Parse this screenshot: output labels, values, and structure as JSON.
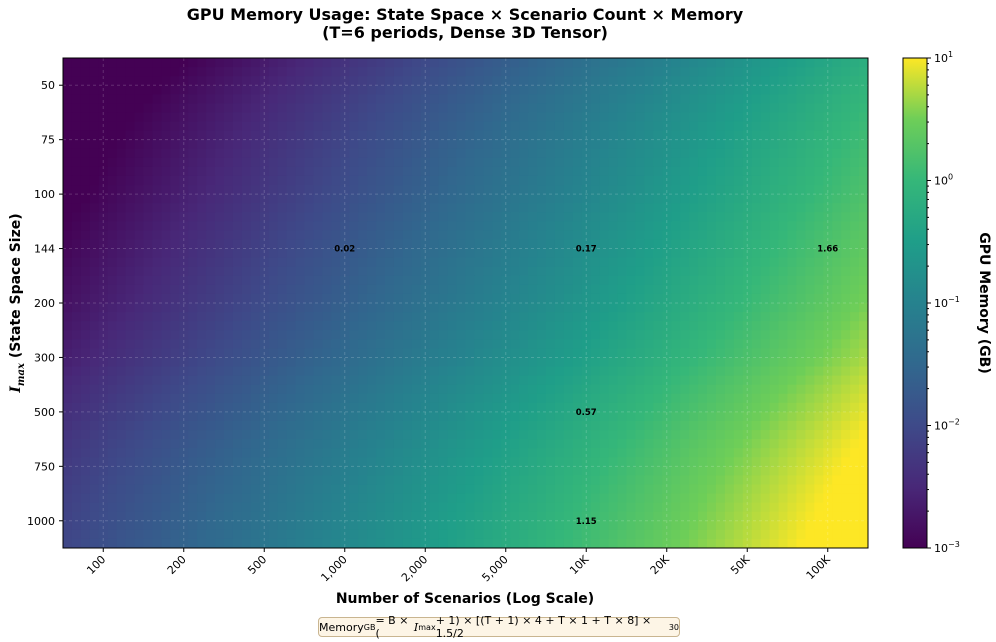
{
  "chart_data": {
    "type": "heatmap",
    "title_line1": "GPU Memory Usage: State Space × Scenario Count × Memory",
    "title_line2": "(T=6 periods, Dense 3D Tensor)",
    "xlabel": "Number of Scenarios (Log Scale)",
    "ylabel_main": "I",
    "ylabel_sub": "max",
    "ylabel_rest": " (State Space Size)",
    "x_scale": "log",
    "x_values": [
      100,
      200,
      500,
      1000,
      2000,
      5000,
      10000,
      20000,
      50000,
      100000
    ],
    "x_tick_labels": [
      "100",
      "200",
      "500",
      "1,000",
      "2,000",
      "5,000",
      "10K",
      "20K",
      "50K",
      "100K"
    ],
    "y_values": [
      50,
      75,
      100,
      144,
      200,
      300,
      500,
      750,
      1000
    ],
    "y_tick_labels": [
      "50",
      "75",
      "100",
      "144",
      "200",
      "300",
      "500",
      "750",
      "1000"
    ],
    "color_scale": "log",
    "colormap": "viridis",
    "vmin": 0.001,
    "vmax": 10,
    "colorbar_label": "GPU Memory (GB)",
    "colorbar_ticks": [
      {
        "base": "10",
        "exp": "1",
        "value": 10
      },
      {
        "base": "10",
        "exp": "0",
        "value": 1
      },
      {
        "base": "10",
        "exp": "−1",
        "value": 0.1
      },
      {
        "base": "10",
        "exp": "−2",
        "value": 0.01
      },
      {
        "base": "10",
        "exp": "−3",
        "value": 0.001
      }
    ],
    "annotations": [
      {
        "x": 1000,
        "y": 144,
        "label": "0.02"
      },
      {
        "x": 10000,
        "y": 144,
        "label": "0.17"
      },
      {
        "x": 100000,
        "y": 144,
        "label": "1.66"
      },
      {
        "x": 10000,
        "y": 500,
        "label": "0.57"
      },
      {
        "x": 10000,
        "y": 1000,
        "label": "1.15"
      }
    ],
    "grid": true
  },
  "formula": {
    "lhs": "Memory",
    "lhs_sub": "GB",
    "rhs_a": " = B × (",
    "rhs_var": "I",
    "rhs_var_sub": "max",
    "rhs_b": " + 1) × [(T + 1) × 4 + T × 1 + T × 8] × 1.5/2",
    "rhs_exp": "30"
  }
}
